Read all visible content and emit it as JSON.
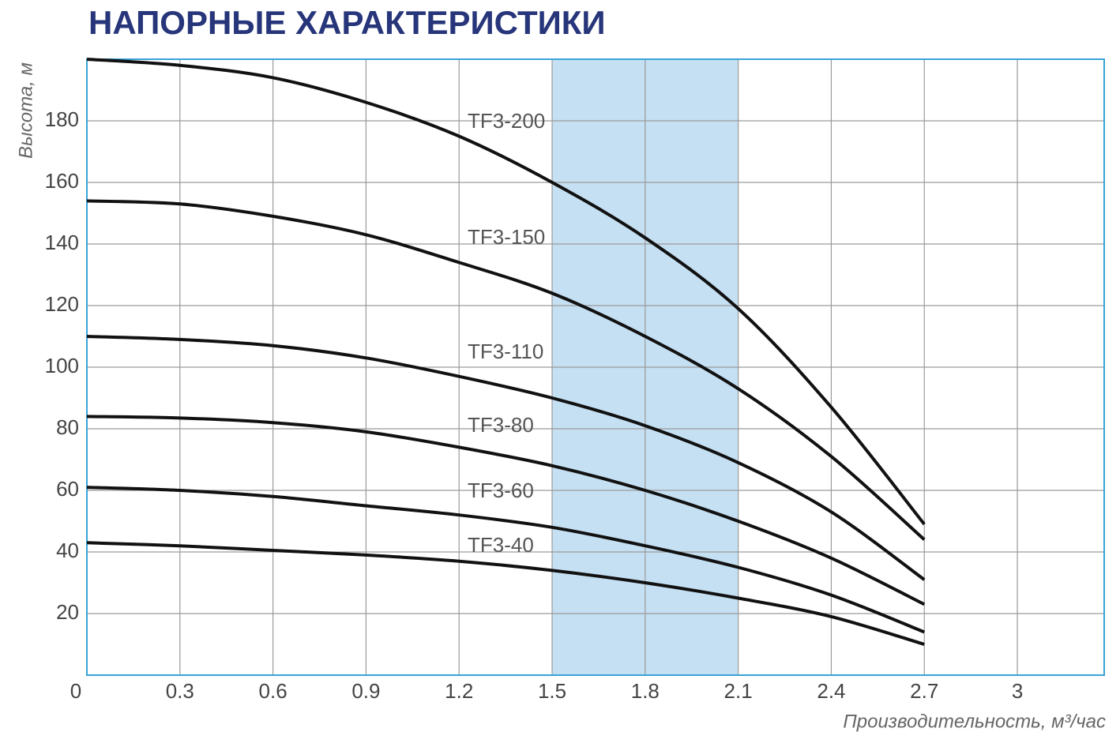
{
  "chart_data": {
    "type": "line",
    "title": "НАПОРНЫЕ ХАРАКТЕРИСТИКИ",
    "y_label": "Высота, м",
    "x_label": "Производительность, м³/час",
    "x": [
      0,
      0.3,
      0.6,
      0.9,
      1.2,
      1.5,
      1.8,
      2.1,
      2.4,
      2.7
    ],
    "series": [
      {
        "name": "TF3-200",
        "color": "#111111",
        "values": [
          200,
          198,
          194,
          186,
          175,
          160,
          142,
          119,
          87,
          49
        ]
      },
      {
        "name": "TF3-150",
        "color": "#111111",
        "values": [
          154,
          153,
          149,
          143,
          134,
          124,
          110,
          93,
          71,
          44
        ]
      },
      {
        "name": "TF3-110",
        "color": "#111111",
        "values": [
          110,
          109,
          107,
          103,
          97,
          90,
          81,
          69,
          53,
          31
        ]
      },
      {
        "name": "TF3-80",
        "color": "#111111",
        "values": [
          84,
          83.5,
          82,
          79,
          74,
          68,
          60,
          50,
          38,
          23
        ]
      },
      {
        "name": "TF3-60",
        "color": "#111111",
        "values": [
          61,
          60,
          58,
          55,
          52,
          48,
          42,
          35,
          26,
          14
        ]
      },
      {
        "name": "TF3-40",
        "color": "#111111",
        "values": [
          43,
          42,
          40.5,
          39,
          37,
          34,
          30,
          25,
          19,
          10
        ]
      }
    ],
    "shaded_range": [
      1.5,
      2.1
    ],
    "shaded_color": "#c5e0f3",
    "xlim": [
      0,
      3.28
    ],
    "ylim": [
      0,
      200
    ],
    "xticks": [
      0,
      0.3,
      0.6,
      0.9,
      1.2,
      1.5,
      1.8,
      2.1,
      2.4,
      2.7,
      3
    ],
    "yticks": [
      20,
      40,
      60,
      80,
      100,
      120,
      140,
      160,
      180
    ],
    "grid": true,
    "frame_color": "#3aa3d6"
  }
}
